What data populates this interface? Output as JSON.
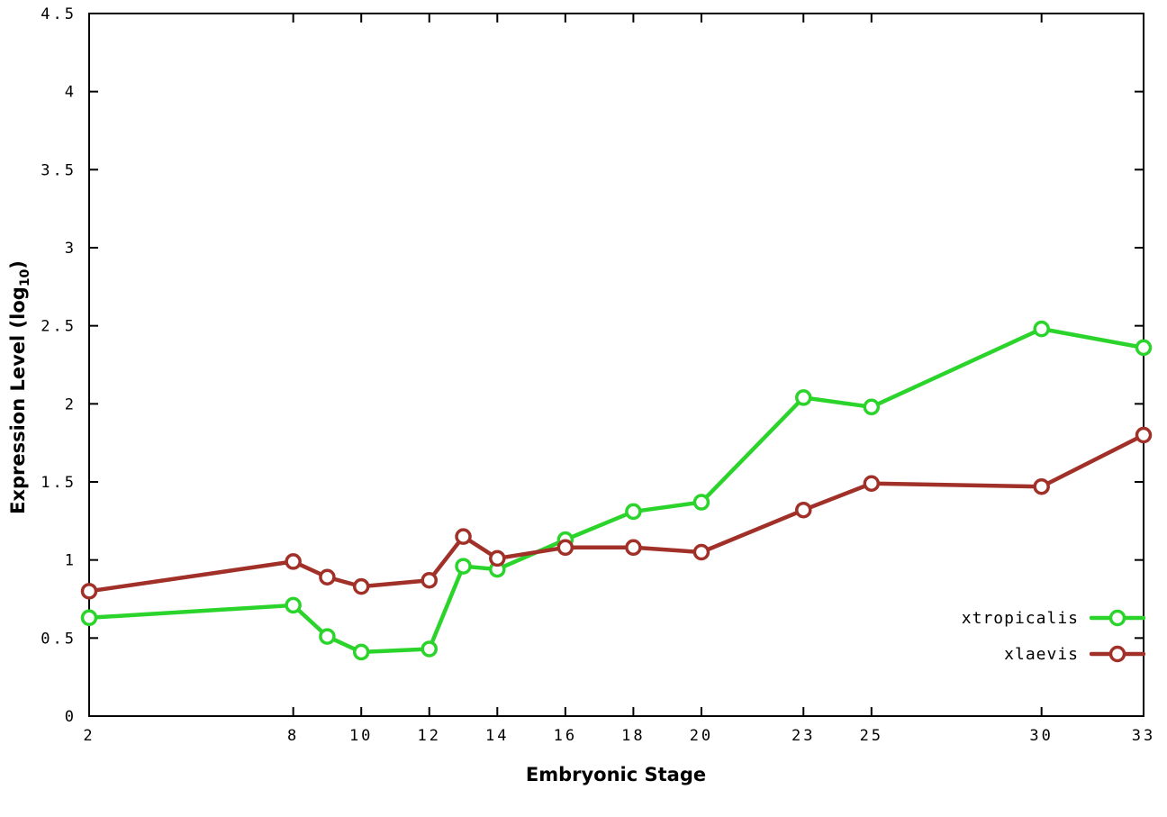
{
  "chart_data": {
    "type": "line",
    "title": "",
    "xlabel": "Embryonic Stage",
    "ylabel": {
      "prefix": "Expression Level (log",
      "subscript": "10",
      "suffix": ")"
    },
    "xlim": [
      2,
      33
    ],
    "ylim": [
      0,
      4.5
    ],
    "grid": false,
    "legend_position": "inside bottom-right",
    "x_ticks": [
      "2",
      "8",
      "10",
      "12",
      "14",
      "16",
      "18",
      "20",
      "23",
      "25",
      "30",
      "33"
    ],
    "x_tick_values": [
      2,
      8,
      10,
      12,
      14,
      16,
      18,
      20,
      23,
      25,
      30,
      33
    ],
    "y_ticks": [
      "0",
      "0.5",
      "1",
      "1.5",
      "2",
      "2.5",
      "3",
      "3.5",
      "4",
      "4.5"
    ],
    "y_tick_values": [
      0,
      0.5,
      1,
      1.5,
      2,
      2.5,
      3,
      3.5,
      4,
      4.5
    ],
    "x": [
      2,
      8,
      9,
      10,
      12,
      13,
      14,
      16,
      18,
      20,
      23,
      25,
      30,
      33
    ],
    "series": [
      {
        "name": "xtropicalis",
        "color": "#2bd42b",
        "values": [
          0.63,
          0.71,
          0.51,
          0.41,
          0.43,
          0.96,
          0.94,
          1.13,
          1.31,
          1.37,
          2.04,
          1.98,
          2.48,
          2.36
        ]
      },
      {
        "name": "xlaevis",
        "color": "#a03028",
        "values": [
          0.8,
          0.99,
          0.89,
          0.83,
          0.87,
          1.15,
          1.01,
          1.08,
          1.08,
          1.05,
          1.32,
          1.49,
          1.47,
          1.8
        ]
      }
    ]
  }
}
